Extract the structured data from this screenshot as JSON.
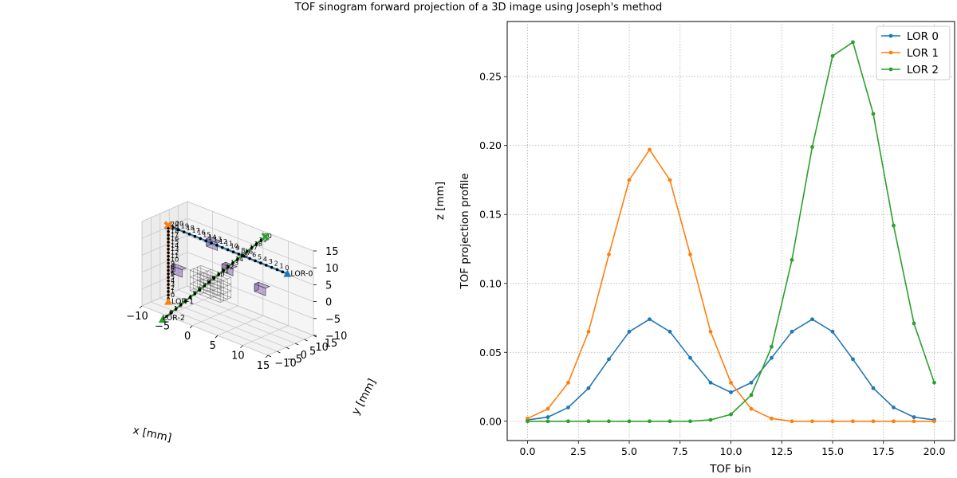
{
  "figure": {
    "title": "TOF sinogram forward projection of a 3D image using Joseph's method"
  },
  "left_panel": {
    "xlabel": "x [mm]",
    "ylabel": "y [mm]",
    "zlabel": "z [mm]",
    "xlim": [
      -10,
      15
    ],
    "ylim": [
      -10,
      15
    ],
    "zlim": [
      -10,
      15
    ],
    "x_ticks": [
      "−10",
      "−5",
      "0",
      "5",
      "10",
      "15"
    ],
    "y_ticks": [
      "−10",
      "−5",
      "0",
      "5",
      "10",
      "15"
    ],
    "z_ticks": [
      "−10",
      "−5",
      "0",
      "5",
      "10",
      "15"
    ],
    "lor_labels": [
      "LOR-0",
      "LOR-1",
      "LOR-2"
    ],
    "lor_colors": [
      "#1f77b4",
      "#ff7f0e",
      "#2ca02c"
    ],
    "voxel_color": "#8e6bb5"
  },
  "chart_data": {
    "type": "line",
    "xlabel": "TOF bin",
    "ylabel": "TOF projection profile",
    "xlim": [
      -1,
      21
    ],
    "ylim": [
      -0.014,
      0.29
    ],
    "x_ticks": [
      0.0,
      2.5,
      5.0,
      7.5,
      10.0,
      12.5,
      15.0,
      17.5,
      20.0
    ],
    "x_tick_labels": [
      "0.0",
      "2.5",
      "5.0",
      "7.5",
      "10.0",
      "12.5",
      "15.0",
      "17.5",
      "20.0"
    ],
    "y_ticks": [
      0.0,
      0.05,
      0.1,
      0.15,
      0.2,
      0.25
    ],
    "y_tick_labels": [
      "0.00",
      "0.05",
      "0.10",
      "0.15",
      "0.20",
      "0.25"
    ],
    "grid": true,
    "legend_position": "top-right",
    "x": [
      0,
      1,
      2,
      3,
      4,
      5,
      6,
      7,
      8,
      9,
      10,
      11,
      12,
      13,
      14,
      15,
      16,
      17,
      18,
      19,
      20
    ],
    "series": [
      {
        "name": "LOR 0",
        "color": "#1f77b4",
        "values": [
          0.001,
          0.003,
          0.01,
          0.024,
          0.045,
          0.065,
          0.074,
          0.065,
          0.046,
          0.028,
          0.021,
          0.028,
          0.046,
          0.065,
          0.074,
          0.065,
          0.045,
          0.024,
          0.01,
          0.003,
          0.001
        ]
      },
      {
        "name": "LOR 1",
        "color": "#ff7f0e",
        "values": [
          0.002,
          0.009,
          0.028,
          0.065,
          0.121,
          0.175,
          0.197,
          0.175,
          0.121,
          0.065,
          0.028,
          0.009,
          0.002,
          0.0,
          0.0,
          0.0,
          0.0,
          0.0,
          0.0,
          0.0,
          0.0
        ]
      },
      {
        "name": "LOR 2",
        "color": "#2ca02c",
        "values": [
          0.0,
          0.0,
          0.0,
          0.0,
          0.0,
          0.0,
          0.0,
          0.0,
          0.0,
          0.001,
          0.005,
          0.019,
          0.054,
          0.117,
          0.199,
          0.265,
          0.275,
          0.223,
          0.142,
          0.071,
          0.028
        ]
      }
    ]
  }
}
